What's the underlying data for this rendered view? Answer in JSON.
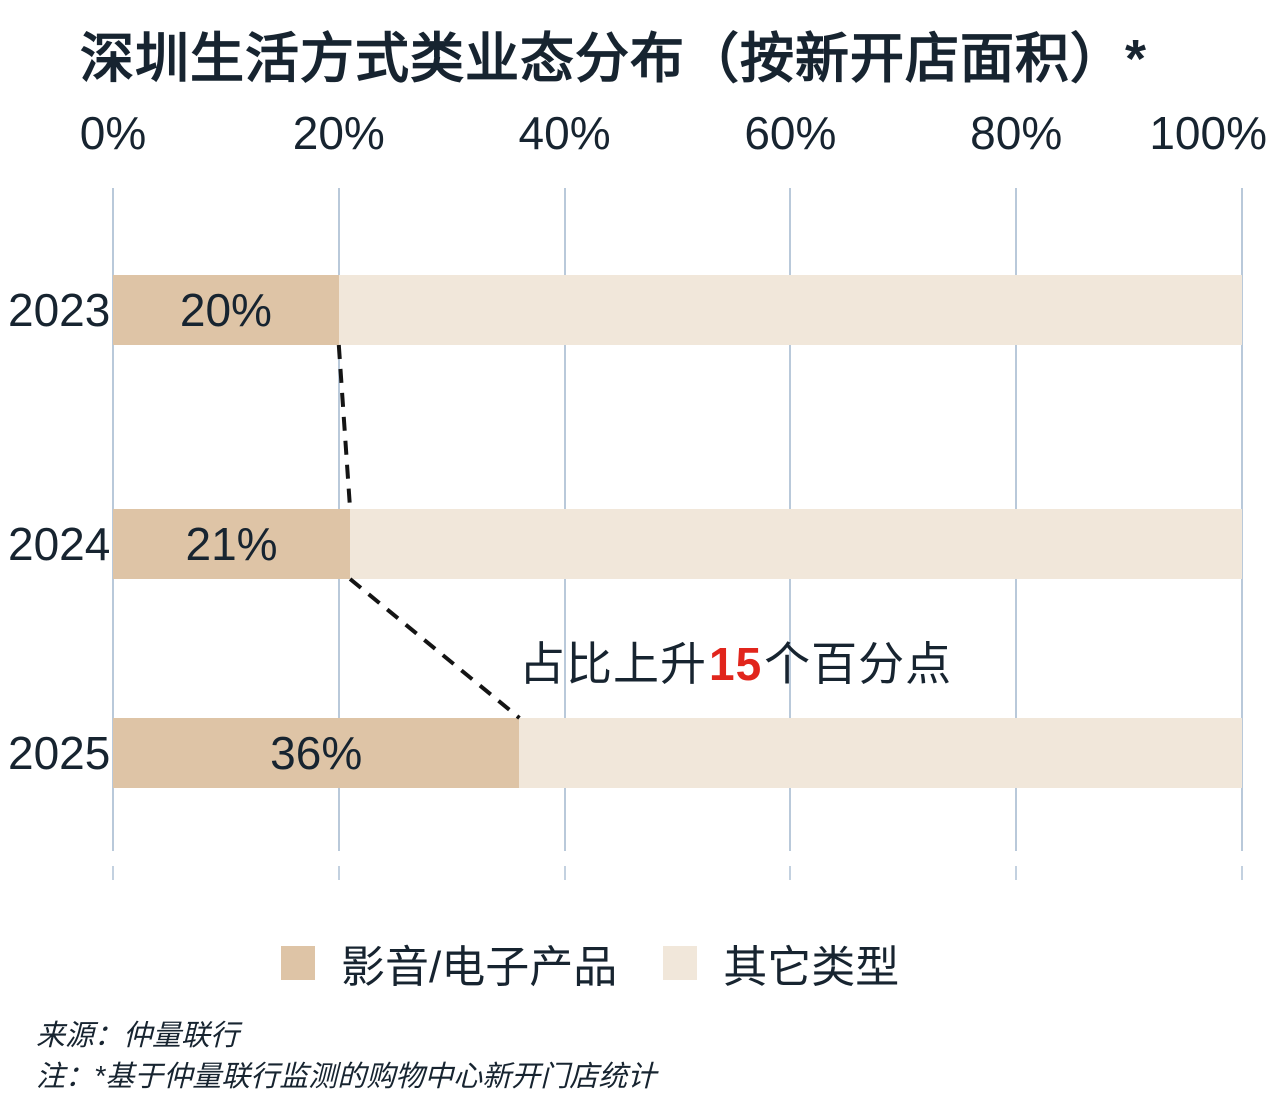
{
  "title": "深圳生活方式类业态分布（按新开店面积）*",
  "chart_data": {
    "type": "bar",
    "orientation": "horizontal",
    "stacked": true,
    "grid": true,
    "legend_position": "bottom",
    "title": "深圳生活方式类业态分布（按新开店面积）*",
    "categories": [
      "2023",
      "2024",
      "2025"
    ],
    "series": [
      {
        "name": "影音/电子产品",
        "color": "#dec4a6",
        "values": [
          20,
          21,
          36
        ]
      },
      {
        "name": "其它类型",
        "color": "#f1e7da",
        "values": [
          80,
          79,
          64
        ]
      }
    ],
    "bar_labels": [
      "20%",
      "21%",
      "36%"
    ],
    "x_ticks": [
      "0%",
      "20%",
      "40%",
      "60%",
      "80%",
      "100%"
    ],
    "xlim": [
      0,
      100
    ],
    "annotation": {
      "prefix": "占比上升",
      "highlight": "15",
      "suffix": "个百分点",
      "highlight_color": "#e1251c"
    }
  },
  "footer": {
    "source": "来源：仲量联行",
    "note": "注：*基于仲量联行监测的购物中心新开门店统计"
  },
  "colors": {
    "text_dark": "#172430",
    "accent_red": "#e1251c",
    "gridline": "#b9c9da",
    "series_av_electronics": "#dec4a6",
    "series_other": "#f1e7da",
    "dashed_line": "#141414",
    "background": "#ffffff"
  }
}
